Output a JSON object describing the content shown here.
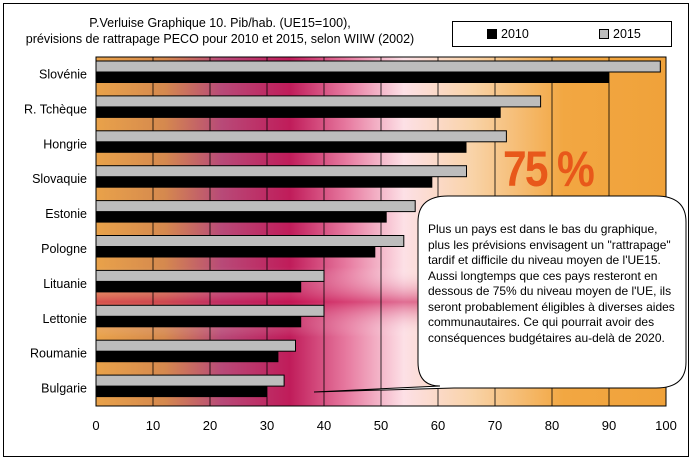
{
  "chart_data": {
    "type": "bar",
    "orientation": "horizontal",
    "title": "P.Verluise Graphique 10. Pib/hab. (UE15=100),\nprévisions de rattrapage PECO pour 2010 et 2015, selon WIIW (2002)",
    "categories": [
      "Slovénie",
      "R. Tchèque",
      "Hongrie",
      "Slovaquie",
      "Estonie",
      "Pologne",
      "Lituanie",
      "Lettonie",
      "Roumanie",
      "Bulgarie"
    ],
    "series": [
      {
        "name": "2010",
        "color": "#000000",
        "values": [
          90,
          71,
          65,
          59,
          51,
          49,
          36,
          36,
          32,
          30
        ]
      },
      {
        "name": "2015",
        "color": "#bdbdbd",
        "values": [
          99,
          78,
          72,
          65,
          56,
          54,
          40,
          40,
          35,
          33
        ]
      }
    ],
    "xlim": [
      0,
      100
    ],
    "xticks": [
      0,
      10,
      20,
      30,
      40,
      50,
      60,
      70,
      80,
      90,
      100
    ],
    "grid": true,
    "legend_position": "top-right"
  },
  "annotation": {
    "big_label": "75 %",
    "callout": "Plus un pays est dans le bas du graphique, plus les prévisions envisagent un \"rattrapage\" tardif et difficile du niveau moyen de l'UE15. Aussi longtemps que ces pays resteront en dessous de 75% du niveau moyen de l'UE, ils  seront probablement éligibles à diverses aides communautaires. Ce qui pourrait avoir des conséquences budgétaires au-delà de 2020."
  }
}
